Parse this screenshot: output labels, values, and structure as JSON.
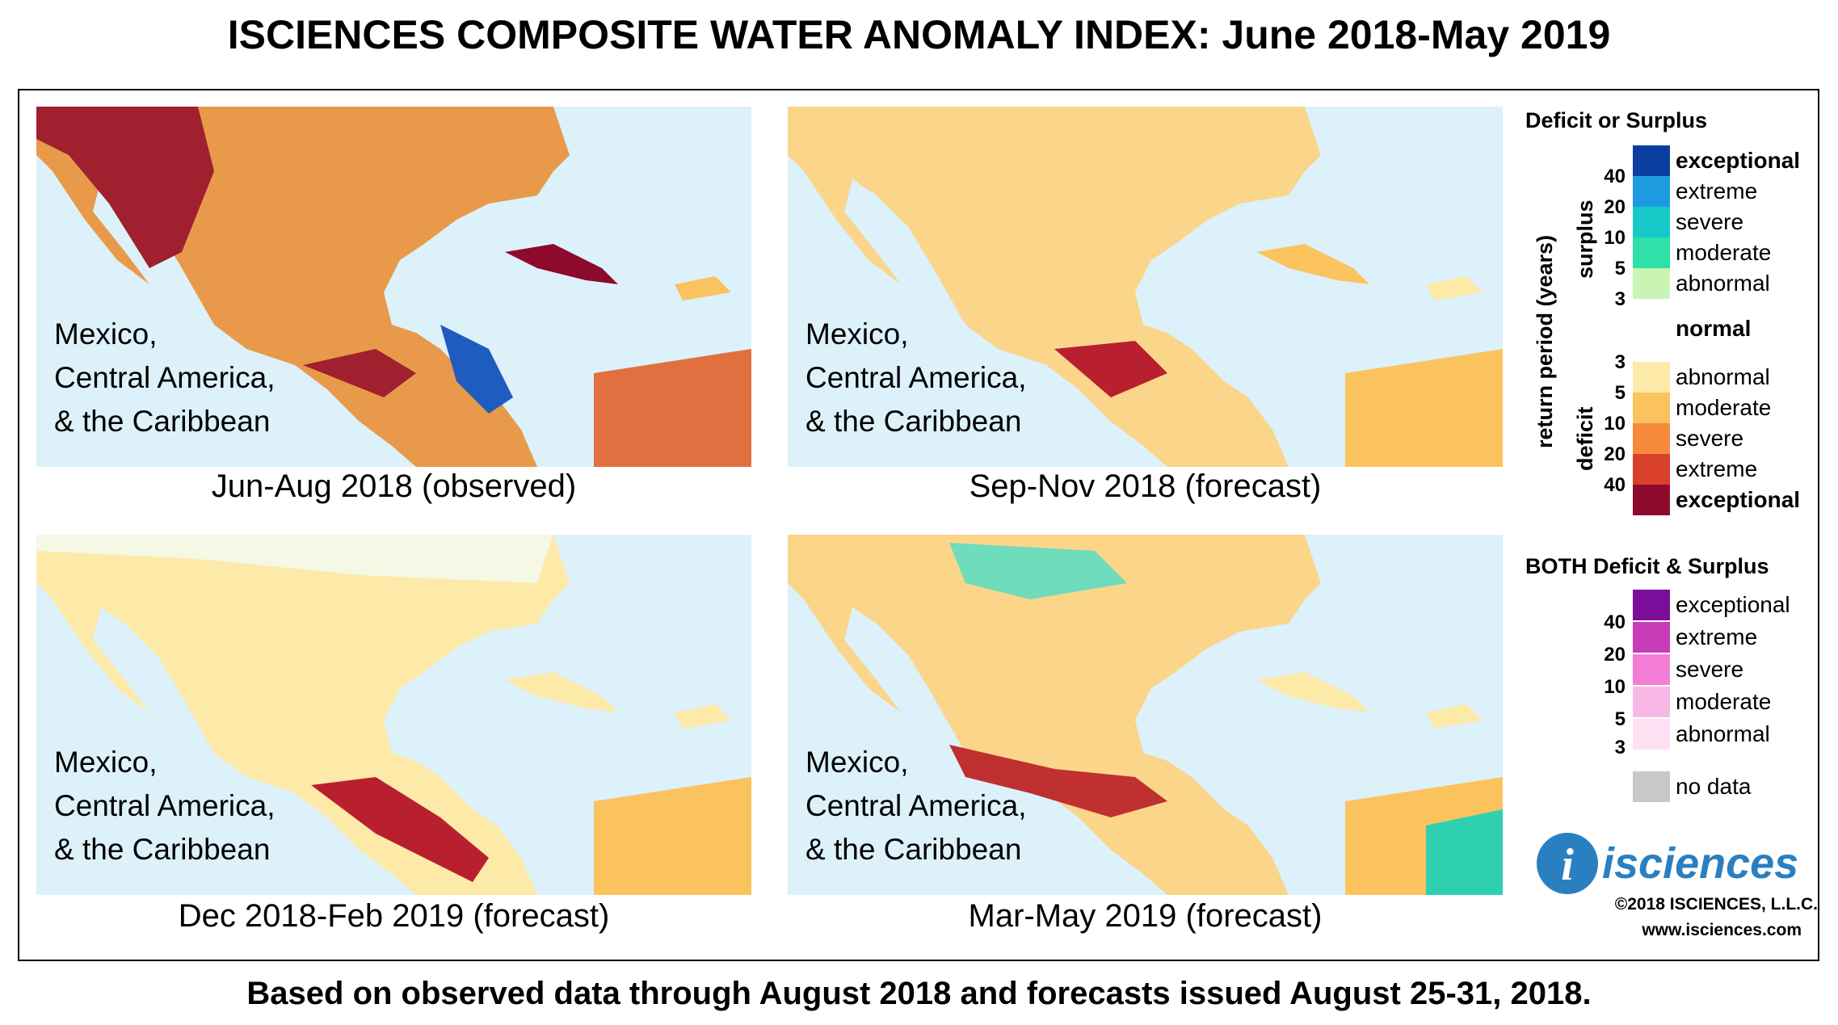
{
  "title": "ISCIENCES COMPOSITE WATER ANOMALY INDEX: June 2018-May 2019",
  "footer": "Based on observed data through August 2018 and forecasts issued August 25-31, 2018.",
  "panels": [
    {
      "region_lines": [
        "Mexico,",
        "Central America,",
        "& the Caribbean"
      ],
      "caption": "Jun-Aug 2018 (observed)"
    },
    {
      "region_lines": [
        "Mexico,",
        "Central America,",
        "& the Caribbean"
      ],
      "caption": "Sep-Nov 2018 (forecast)"
    },
    {
      "region_lines": [
        "Mexico,",
        "Central America,",
        "& the Caribbean"
      ],
      "caption": "Dec 2018-Feb 2019 (forecast)"
    },
    {
      "region_lines": [
        "Mexico,",
        "Central America,",
        "& the Caribbean"
      ],
      "caption": "Mar-May 2019 (forecast)"
    }
  ],
  "legend": {
    "title": "Deficit or Surplus",
    "axis_label": "return period (years)",
    "surplus_label": "surplus",
    "deficit_label": "deficit",
    "surplus": [
      {
        "label": "exceptional",
        "color": "#0a3fa0"
      },
      {
        "label": "extreme",
        "color": "#1e9be0"
      },
      {
        "label": "severe",
        "color": "#16c8c8"
      },
      {
        "label": "moderate",
        "color": "#2fe0a8"
      },
      {
        "label": "abnormal",
        "color": "#c8f5b4"
      }
    ],
    "surplus_numbers": [
      "40",
      "20",
      "10",
      "5",
      "3"
    ],
    "normal": {
      "label": "normal",
      "color": "#ffffff"
    },
    "deficit": [
      {
        "label": "abnormal",
        "color": "#fde9a8"
      },
      {
        "label": "moderate",
        "color": "#fbc35e"
      },
      {
        "label": "severe",
        "color": "#f78a3a"
      },
      {
        "label": "extreme",
        "color": "#d8402a"
      },
      {
        "label": "exceptional",
        "color": "#8e0a2c"
      }
    ],
    "deficit_numbers": [
      "3",
      "5",
      "10",
      "20",
      "40"
    ],
    "both_title": "BOTH Deficit & Surplus",
    "both": [
      {
        "label": "exceptional",
        "color": "#7a0d9a"
      },
      {
        "label": "extreme",
        "color": "#c83cb8"
      },
      {
        "label": "severe",
        "color": "#f47ed6"
      },
      {
        "label": "moderate",
        "color": "#f8b8e6"
      },
      {
        "label": "abnormal",
        "color": "#fde0f2"
      }
    ],
    "both_numbers": [
      "40",
      "20",
      "10",
      "5",
      "3"
    ],
    "nodata": {
      "label": "no data",
      "color": "#c8c8c8"
    }
  },
  "logo_text": "isciences",
  "copyright": "©2018 ISCIENCES, L.L.C.",
  "website": "www.isciences.com"
}
